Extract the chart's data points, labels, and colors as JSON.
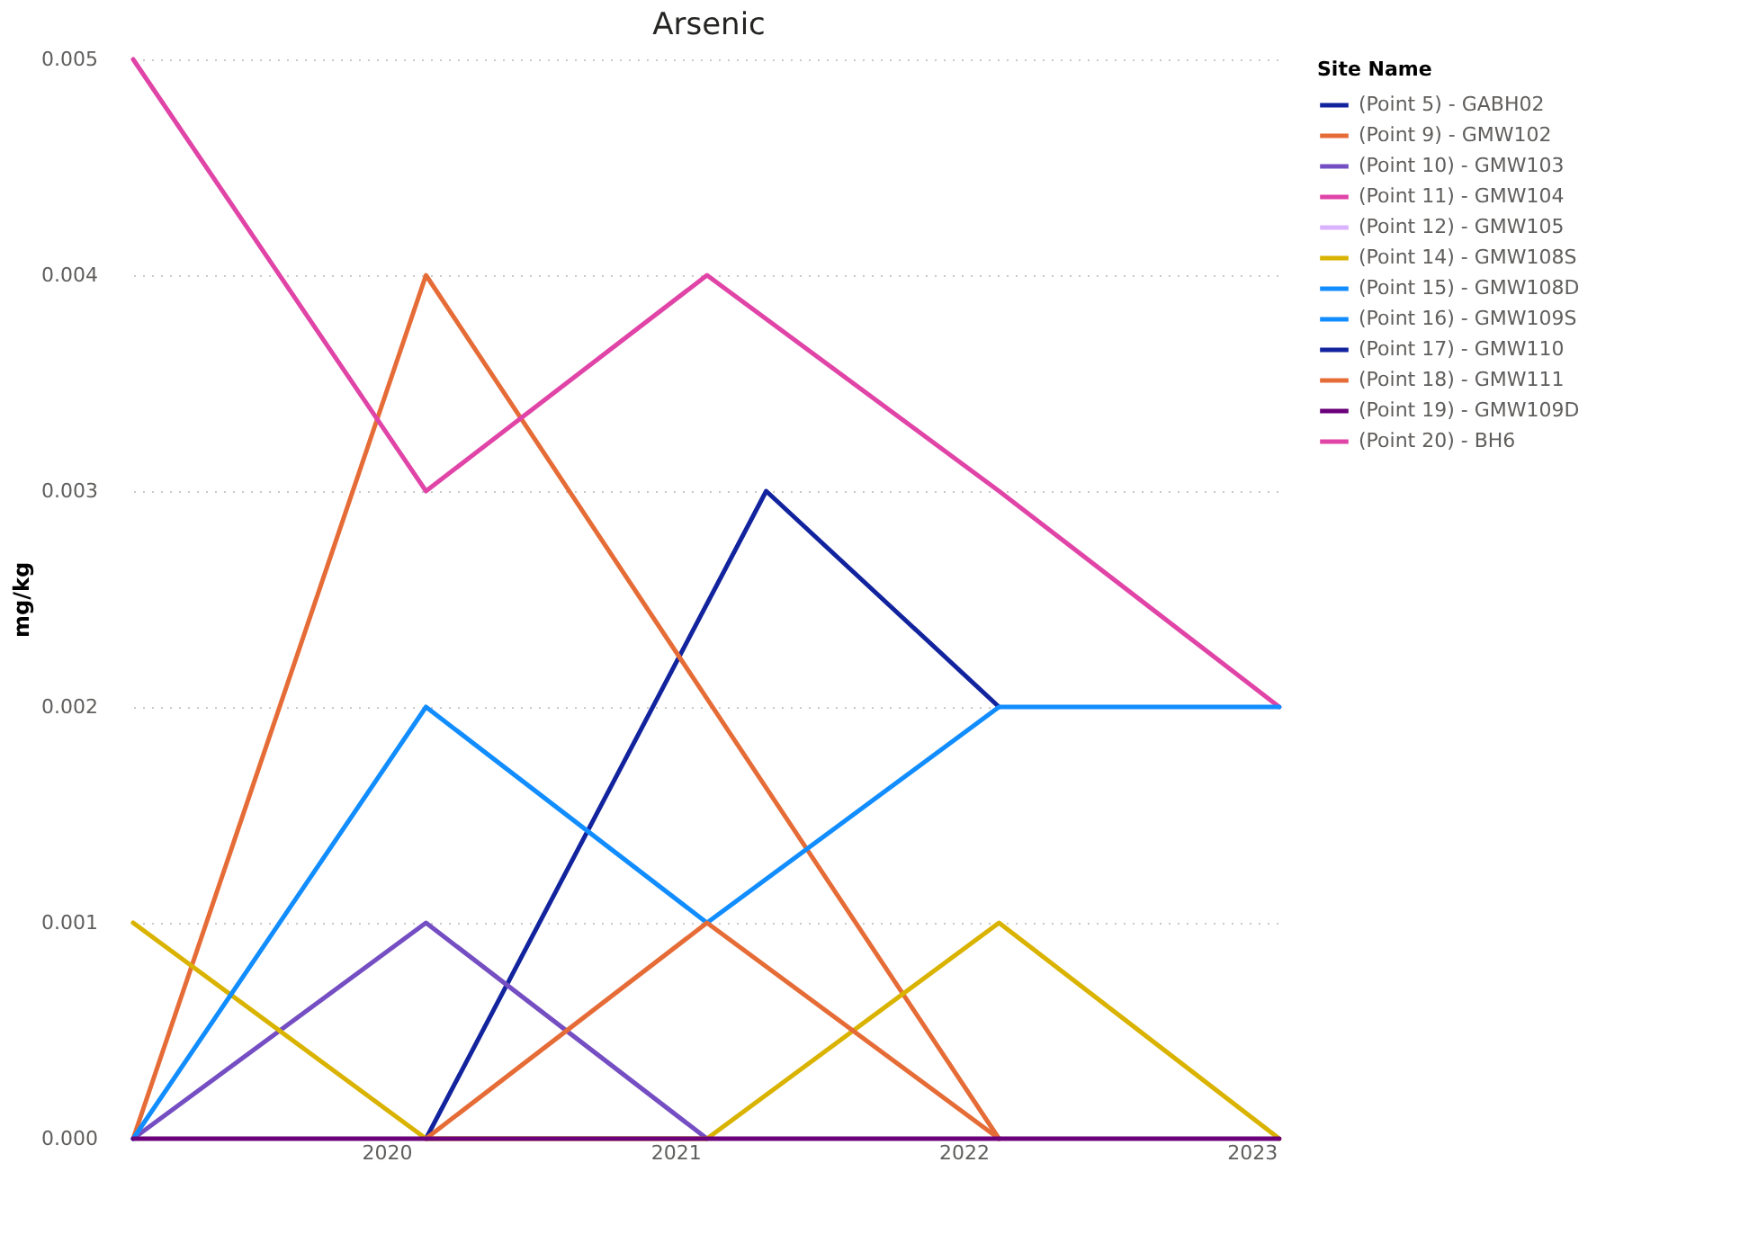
{
  "chart_data": {
    "type": "line",
    "title": "Arsenic",
    "ylabel": "mg/kg",
    "legend_title": "Site Name",
    "legend": "right",
    "grid": "y",
    "line_style": "solid",
    "marker": "none",
    "xlim": [
      "2019-02-14",
      "2023-02-12"
    ],
    "xticks": [
      "2020",
      "2021",
      "2022",
      "2023"
    ],
    "ylim": [
      0,
      0.005
    ],
    "yticks": [
      {
        "value": 0,
        "label": "0.000"
      },
      {
        "value": 0.001,
        "label": "0.001"
      },
      {
        "value": 0.002,
        "label": "0.002"
      },
      {
        "value": 0.003,
        "label": "0.003"
      },
      {
        "value": 0.004,
        "label": "0.004"
      },
      {
        "value": 0.005,
        "label": "0.005"
      }
    ],
    "series": [
      {
        "name": "(Point 5) - GABH02",
        "color": "#12239e",
        "x": [
          "2020-02-20",
          "2021-04-26",
          "2022-02-15"
        ],
        "values": [
          0,
          0.003,
          0.002
        ]
      },
      {
        "name": "(Point 9) - GMW102",
        "color": "#e66c37",
        "x": [
          "2019-02-14",
          "2020-02-20",
          "2022-02-15"
        ],
        "values": [
          0,
          0.004,
          0
        ]
      },
      {
        "name": "(Point 10) - GMW103",
        "color": "#744ec2",
        "x": [
          "2019-02-14",
          "2020-02-20",
          "2021-02-10"
        ],
        "values": [
          0,
          0.001,
          0
        ]
      },
      {
        "name": "(Point 11) - GMW104",
        "color": "#e044a7",
        "x": [
          "2019-02-14",
          "2020-02-20",
          "2021-02-10",
          "2022-02-15",
          "2023-02-05"
        ],
        "values": [
          0.005,
          0.003,
          0.004,
          0.003,
          0.002
        ]
      },
      {
        "name": "(Point 12) - GMW105",
        "color": "#d9b3ff"
      },
      {
        "name": "(Point 14) - GMW108S",
        "color": "#d9b300",
        "x": [
          "2019-02-14",
          "2020-02-20",
          "2021-02-10",
          "2022-02-15",
          "2023-02-05"
        ],
        "values": [
          0.001,
          0,
          0,
          0.001,
          0
        ]
      },
      {
        "name": "(Point 15) - GMW108D",
        "color": "#118dff",
        "x": [
          "2019-02-14",
          "2020-02-20",
          "2021-02-10",
          "2022-02-15",
          "2023-02-05"
        ],
        "values": [
          0,
          0.002,
          0.001,
          0.002,
          0.002
        ]
      },
      {
        "name": "(Point 16) - GMW109S",
        "color": "#118dff"
      },
      {
        "name": "(Point 17) - GMW110",
        "color": "#12239e"
      },
      {
        "name": "(Point 18) - GMW111",
        "color": "#e66c37",
        "x": [
          "2020-02-20",
          "2021-02-10",
          "2022-02-15"
        ],
        "values": [
          0,
          0.001,
          0
        ]
      },
      {
        "name": "(Point 19) - GMW109D",
        "color": "#6b007b",
        "x": [
          "2019-02-14",
          "2020-02-20",
          "2021-02-10",
          "2022-02-15",
          "2023-02-05"
        ],
        "values": [
          0,
          0,
          0,
          0,
          0
        ]
      },
      {
        "name": "(Point 20) - BH6",
        "color": "#e044a7"
      }
    ]
  }
}
